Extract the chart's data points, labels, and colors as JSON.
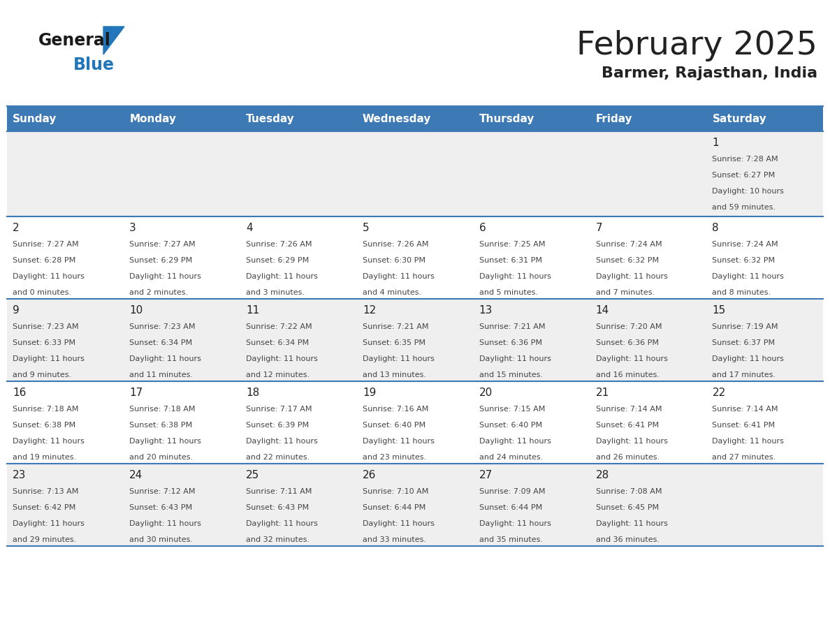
{
  "title": "February 2025",
  "subtitle": "Barmer, Rajasthan, India",
  "header_color": "#3d7ab5",
  "header_text_color": "#ffffff",
  "weekdays": [
    "Sunday",
    "Monday",
    "Tuesday",
    "Wednesday",
    "Thursday",
    "Friday",
    "Saturday"
  ],
  "row_bg_colors": [
    "#efefef",
    "#ffffff"
  ],
  "border_color": "#3d7ab5",
  "text_color": "#444444",
  "day_number_color": "#222222",
  "logo_general_color": "#1a1a1a",
  "logo_blue_color": "#2277bb",
  "calendar_data": [
    [
      null,
      null,
      null,
      null,
      null,
      null,
      1
    ],
    [
      2,
      3,
      4,
      5,
      6,
      7,
      8
    ],
    [
      9,
      10,
      11,
      12,
      13,
      14,
      15
    ],
    [
      16,
      17,
      18,
      19,
      20,
      21,
      22
    ],
    [
      23,
      24,
      25,
      26,
      27,
      28,
      null
    ]
  ],
  "sunrise_data": {
    "1": "7:28 AM",
    "2": "7:27 AM",
    "3": "7:27 AM",
    "4": "7:26 AM",
    "5": "7:26 AM",
    "6": "7:25 AM",
    "7": "7:24 AM",
    "8": "7:24 AM",
    "9": "7:23 AM",
    "10": "7:23 AM",
    "11": "7:22 AM",
    "12": "7:21 AM",
    "13": "7:21 AM",
    "14": "7:20 AM",
    "15": "7:19 AM",
    "16": "7:18 AM",
    "17": "7:18 AM",
    "18": "7:17 AM",
    "19": "7:16 AM",
    "20": "7:15 AM",
    "21": "7:14 AM",
    "22": "7:14 AM",
    "23": "7:13 AM",
    "24": "7:12 AM",
    "25": "7:11 AM",
    "26": "7:10 AM",
    "27": "7:09 AM",
    "28": "7:08 AM"
  },
  "sunset_data": {
    "1": "6:27 PM",
    "2": "6:28 PM",
    "3": "6:29 PM",
    "4": "6:29 PM",
    "5": "6:30 PM",
    "6": "6:31 PM",
    "7": "6:32 PM",
    "8": "6:32 PM",
    "9": "6:33 PM",
    "10": "6:34 PM",
    "11": "6:34 PM",
    "12": "6:35 PM",
    "13": "6:36 PM",
    "14": "6:36 PM",
    "15": "6:37 PM",
    "16": "6:38 PM",
    "17": "6:38 PM",
    "18": "6:39 PM",
    "19": "6:40 PM",
    "20": "6:40 PM",
    "21": "6:41 PM",
    "22": "6:41 PM",
    "23": "6:42 PM",
    "24": "6:43 PM",
    "25": "6:43 PM",
    "26": "6:44 PM",
    "27": "6:44 PM",
    "28": "6:45 PM"
  },
  "daylight_data": {
    "1": [
      "10 hours",
      "and 59 minutes."
    ],
    "2": [
      "11 hours",
      "and 0 minutes."
    ],
    "3": [
      "11 hours",
      "and 2 minutes."
    ],
    "4": [
      "11 hours",
      "and 3 minutes."
    ],
    "5": [
      "11 hours",
      "and 4 minutes."
    ],
    "6": [
      "11 hours",
      "and 5 minutes."
    ],
    "7": [
      "11 hours",
      "and 7 minutes."
    ],
    "8": [
      "11 hours",
      "and 8 minutes."
    ],
    "9": [
      "11 hours",
      "and 9 minutes."
    ],
    "10": [
      "11 hours",
      "and 11 minutes."
    ],
    "11": [
      "11 hours",
      "and 12 minutes."
    ],
    "12": [
      "11 hours",
      "and 13 minutes."
    ],
    "13": [
      "11 hours",
      "and 15 minutes."
    ],
    "14": [
      "11 hours",
      "and 16 minutes."
    ],
    "15": [
      "11 hours",
      "and 17 minutes."
    ],
    "16": [
      "11 hours",
      "and 19 minutes."
    ],
    "17": [
      "11 hours",
      "and 20 minutes."
    ],
    "18": [
      "11 hours",
      "and 22 minutes."
    ],
    "19": [
      "11 hours",
      "and 23 minutes."
    ],
    "20": [
      "11 hours",
      "and 24 minutes."
    ],
    "21": [
      "11 hours",
      "and 26 minutes."
    ],
    "22": [
      "11 hours",
      "and 27 minutes."
    ],
    "23": [
      "11 hours",
      "and 29 minutes."
    ],
    "24": [
      "11 hours",
      "and 30 minutes."
    ],
    "25": [
      "11 hours",
      "and 32 minutes."
    ],
    "26": [
      "11 hours",
      "and 33 minutes."
    ],
    "27": [
      "11 hours",
      "and 35 minutes."
    ],
    "28": [
      "11 hours",
      "and 36 minutes."
    ]
  }
}
